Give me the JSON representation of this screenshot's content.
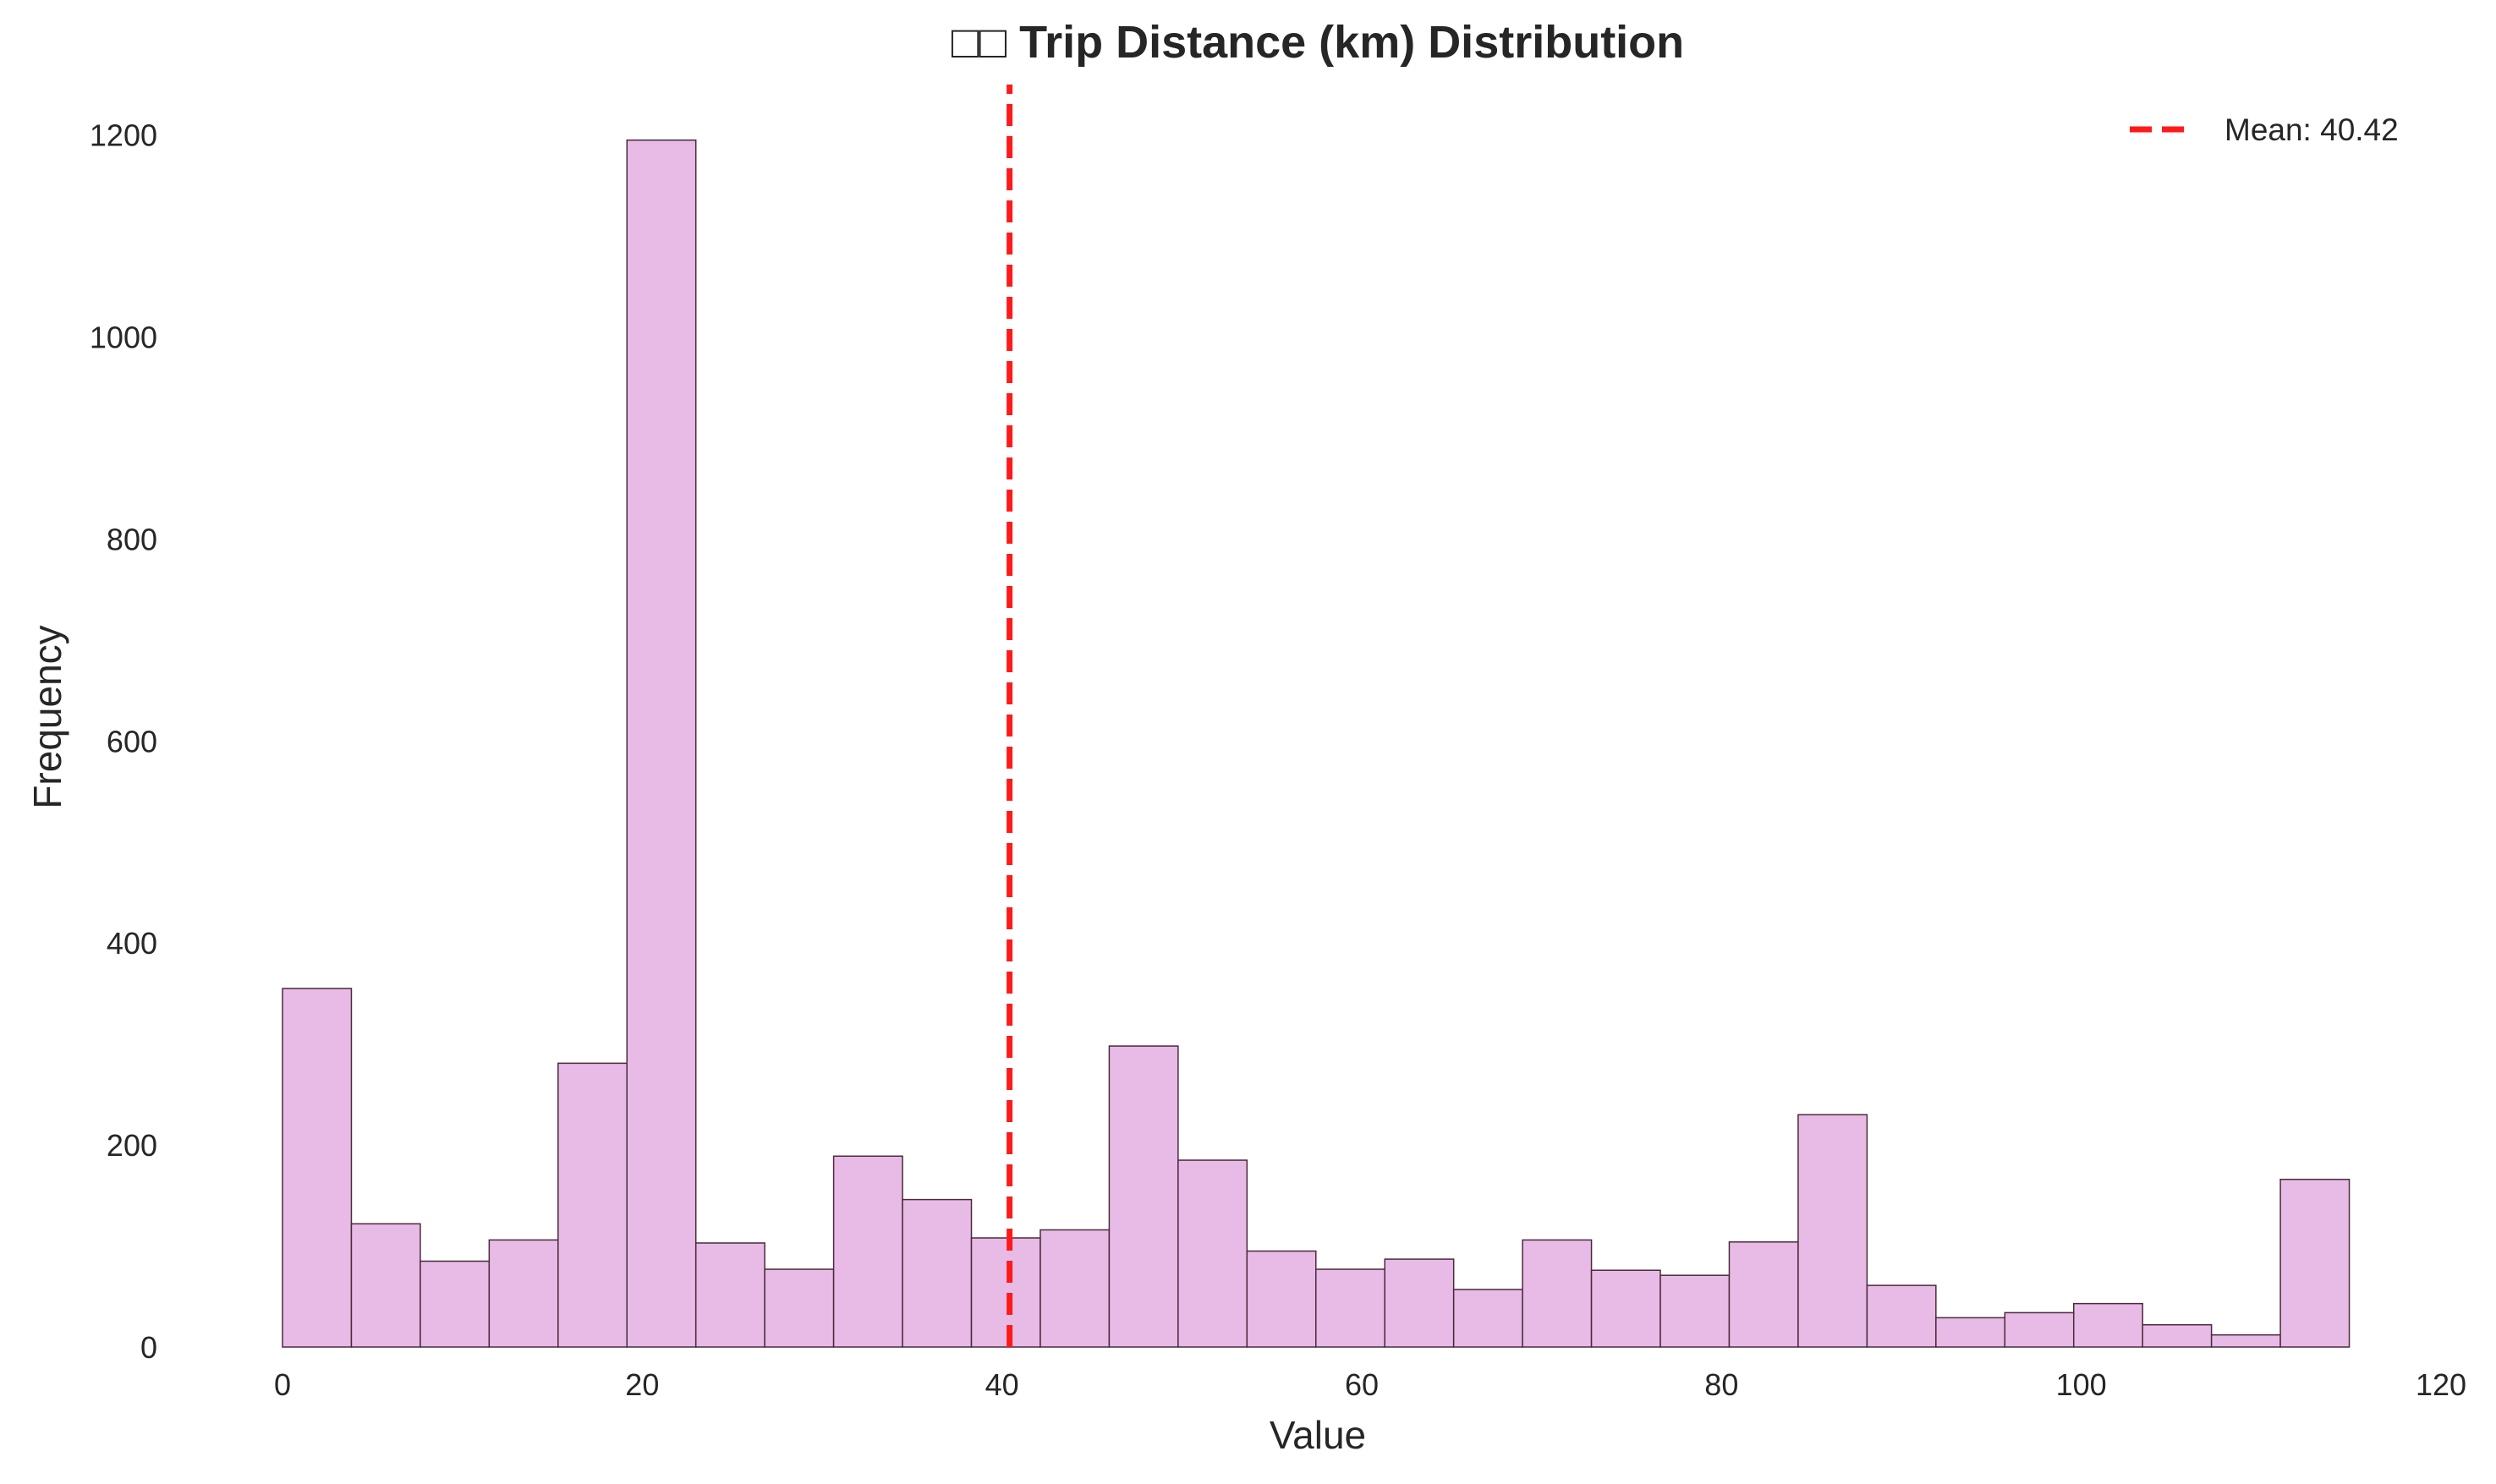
{
  "chart_data": {
    "type": "bar",
    "title": "□□ Trip Distance (km) Distribution",
    "xlabel": "Value",
    "ylabel": "Frequency",
    "xlim": [
      0,
      120
    ],
    "ylim": [
      0,
      1250
    ],
    "x_ticks": [
      "0",
      "20",
      "40",
      "60",
      "80",
      "100",
      "120"
    ],
    "y_ticks": [
      "0",
      "200",
      "400",
      "600",
      "800",
      "1000",
      "1200"
    ],
    "grid": false,
    "bins": {
      "start": 0,
      "width": 3.83,
      "counts": [
        355,
        122,
        85,
        106,
        281,
        1195,
        103,
        77,
        189,
        146,
        108,
        116,
        298,
        185,
        95,
        77,
        87,
        57,
        106,
        76,
        71,
        104,
        230,
        61,
        29,
        34,
        43,
        22,
        12,
        166
      ]
    },
    "bar_color": "#e8bbe6",
    "bar_edge_color": "#4a2a3a",
    "mean_line": {
      "value": 40.42,
      "label": "Mean: 40.42",
      "color": "#ff1a1a"
    },
    "legend_position": "top-right"
  }
}
